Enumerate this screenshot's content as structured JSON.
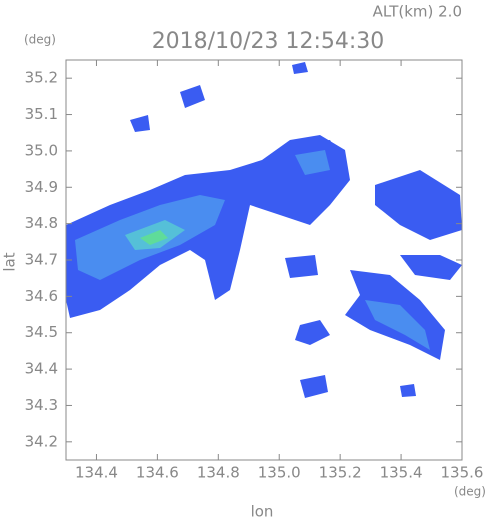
{
  "chart_data": {
    "type": "radar-map",
    "title": "2018/10/23 12:54:30",
    "subtitle": "ALT(km) 2.0",
    "x_label": "lon",
    "y_label": "lat",
    "x_unit": "(deg)",
    "y_unit": "(deg)",
    "xlim": [
      134.3,
      135.6
    ],
    "ylim": [
      34.15,
      35.25
    ],
    "xticks": [
      134.4,
      134.6,
      134.8,
      {
        "value": 135.0,
        "label": "135.0"
      },
      135.2,
      135.4,
      135.6
    ],
    "yticks": [
      34.2,
      34.3,
      34.4,
      34.5,
      34.6,
      34.7,
      34.8,
      34.9,
      {
        "value": 35.0,
        "label": "35.0"
      },
      35.1,
      35.2
    ]
  }
}
